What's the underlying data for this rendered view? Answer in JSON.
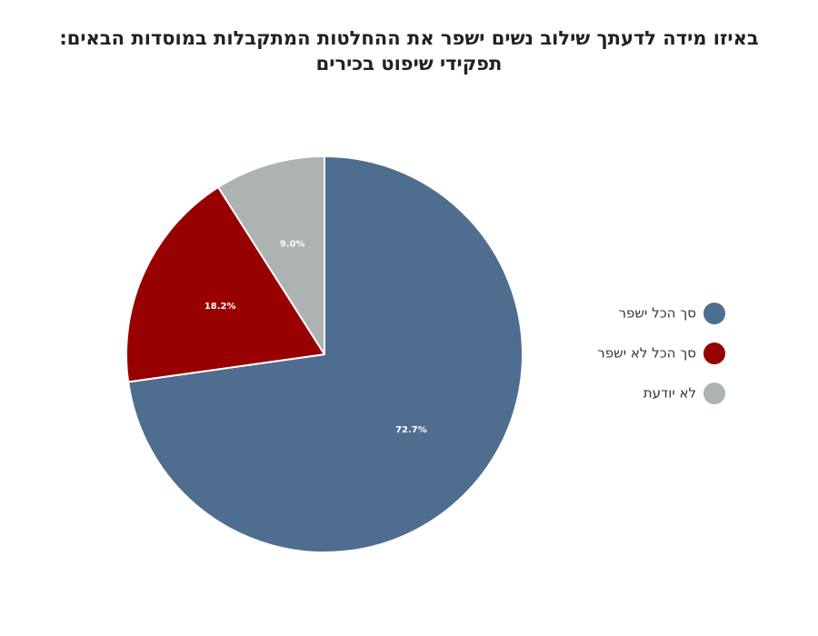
{
  "chart_data": {
    "type": "pie",
    "title_lines": [
      "באיזו מידה לדעתך שילוב נשים ישפר את ההחלטות המתקבלות במוסדות הבאים:",
      "תפקידי שיפוט בכירים"
    ],
    "slices": [
      {
        "label": "סך הכל ישפר",
        "value": 72.7,
        "value_label": "72.7%",
        "color": "#4f6e8f"
      },
      {
        "label": "סך הכל לא ישפר",
        "value": 18.2,
        "value_label": "18.2%",
        "color": "#990000"
      },
      {
        "label": "לא יודעת",
        "value": 9.0,
        "value_label": "9.0%",
        "color": "#adb2b3"
      }
    ],
    "start_angle": "12 o'clock",
    "direction": "clockwise",
    "legend_position": "right"
  }
}
